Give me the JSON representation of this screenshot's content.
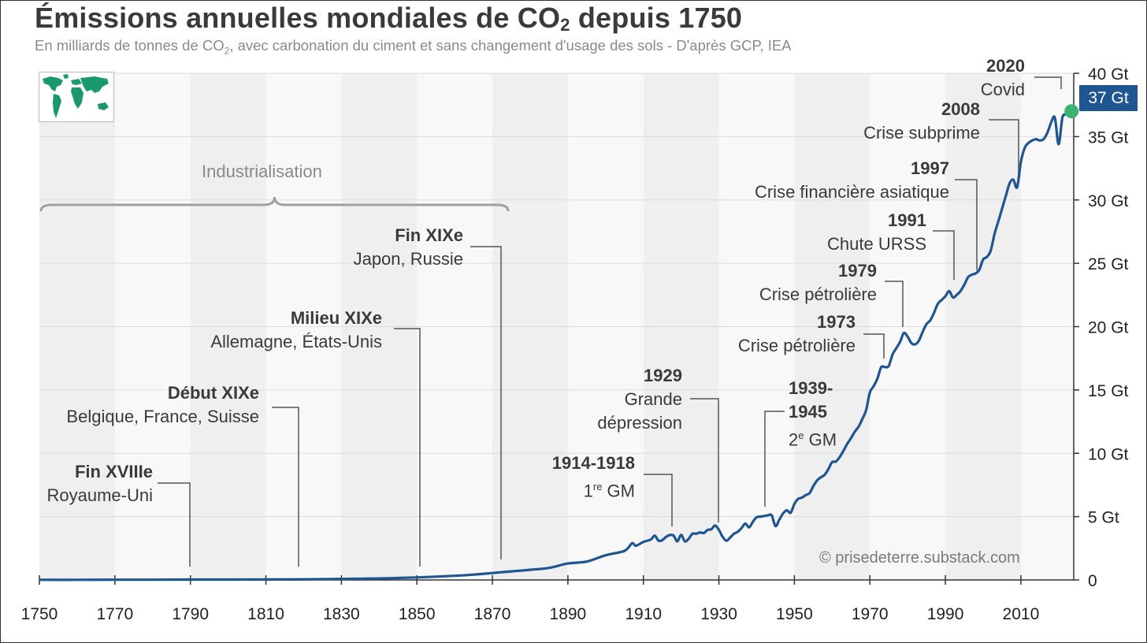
{
  "title_main": "Émissions annuelles mondiales de CO",
  "title_sub": "2",
  "title_tail": " depuis 1750",
  "subtitle_main": "En milliards de tonnes de CO",
  "subtitle_sub": "2",
  "subtitle_tail": ", avec carbonation du ciment et sans changement d'usage des sols - D'après GCP, IEA",
  "credit": "© prisedeterre.substack.com",
  "industrialisation_label": "Industrialisation",
  "current_badge": "37 Gt",
  "colors": {
    "line": "#1f5591",
    "endpoint": "#3cb371",
    "band_dark": "#efefef",
    "band_light": "#f8f8f8",
    "text": "#3a3a3a",
    "map": "#1a9a6c"
  },
  "annotations": {
    "a1790": {
      "title": "Fin XVIIIe",
      "text": "Royaume-Uni"
    },
    "a1810": {
      "title": "Début XIXe",
      "text": "Belgique, France, Suisse"
    },
    "a1850": {
      "title": "Milieu XIXe",
      "text": "Allemagne, États-Unis"
    },
    "a1870": {
      "title": "Fin XIXe",
      "text": "Japon, Russie"
    },
    "a1914": {
      "title": "1914-1918",
      "text_pre": "1",
      "text_sup": "re",
      "text_post": " GM"
    },
    "a1929": {
      "title": "1929",
      "line1": "Grande",
      "line2": "dépression"
    },
    "a1939": {
      "title_l1": "1939-",
      "title_l2": "1945",
      "text_pre": "2",
      "text_sup": "e",
      "text_post": " GM"
    },
    "a1973": {
      "title": "1973",
      "text": "Crise pétrolière"
    },
    "a1979": {
      "title": "1979",
      "text": "Crise pétrolière"
    },
    "a1991": {
      "title": "1991",
      "text": "Chute URSS"
    },
    "a1997": {
      "title": "1997",
      "text": "Crise financière asiatique"
    },
    "a2008": {
      "title": "2008",
      "text": "Crise subprime"
    },
    "a2020": {
      "title": "2020",
      "text": "Covid"
    }
  },
  "chart_data": {
    "type": "line",
    "title": "Émissions annuelles mondiales de CO2 depuis 1750",
    "xlabel": "",
    "ylabel": "Gt CO2",
    "xlim": [
      1750,
      2024
    ],
    "ylim": [
      0,
      40
    ],
    "x_ticks": [
      1750,
      1770,
      1790,
      1810,
      1830,
      1850,
      1870,
      1890,
      1910,
      1930,
      1950,
      1970,
      1990,
      2010
    ],
    "y_ticks": [
      0,
      5,
      10,
      15,
      20,
      25,
      30,
      35,
      40
    ],
    "y_tick_labels": [
      "0",
      "5 Gt",
      "10 Gt",
      "15 Gt",
      "20 Gt",
      "25 Gt",
      "30 Gt",
      "35 Gt",
      "40 Gt"
    ],
    "series": [
      {
        "name": "Émissions annuelles mondiales de CO2",
        "points": [
          [
            1750,
            0.01
          ],
          [
            1760,
            0.01
          ],
          [
            1770,
            0.02
          ],
          [
            1780,
            0.02
          ],
          [
            1790,
            0.03
          ],
          [
            1800,
            0.03
          ],
          [
            1810,
            0.04
          ],
          [
            1820,
            0.05
          ],
          [
            1830,
            0.08
          ],
          [
            1840,
            0.12
          ],
          [
            1850,
            0.2
          ],
          [
            1855,
            0.26
          ],
          [
            1860,
            0.33
          ],
          [
            1865,
            0.42
          ],
          [
            1870,
            0.55
          ],
          [
            1875,
            0.68
          ],
          [
            1880,
            0.8
          ],
          [
            1885,
            0.95
          ],
          [
            1890,
            1.3
          ],
          [
            1895,
            1.45
          ],
          [
            1900,
            1.95
          ],
          [
            1905,
            2.3
          ],
          [
            1907,
            2.9
          ],
          [
            1908,
            2.7
          ],
          [
            1910,
            3.0
          ],
          [
            1912,
            3.2
          ],
          [
            1913,
            3.5
          ],
          [
            1914,
            3.1
          ],
          [
            1915,
            3.15
          ],
          [
            1916,
            3.4
          ],
          [
            1917,
            3.55
          ],
          [
            1918,
            3.5
          ],
          [
            1919,
            3.05
          ],
          [
            1920,
            3.55
          ],
          [
            1921,
            3.05
          ],
          [
            1922,
            3.25
          ],
          [
            1923,
            3.65
          ],
          [
            1924,
            3.65
          ],
          [
            1925,
            3.75
          ],
          [
            1926,
            3.7
          ],
          [
            1927,
            3.95
          ],
          [
            1928,
            4.0
          ],
          [
            1929,
            4.3
          ],
          [
            1930,
            3.95
          ],
          [
            1931,
            3.4
          ],
          [
            1932,
            3.1
          ],
          [
            1933,
            3.35
          ],
          [
            1934,
            3.65
          ],
          [
            1935,
            3.8
          ],
          [
            1936,
            4.1
          ],
          [
            1937,
            4.45
          ],
          [
            1938,
            4.15
          ],
          [
            1939,
            4.6
          ],
          [
            1940,
            4.95
          ],
          [
            1941,
            5.0
          ],
          [
            1942,
            5.05
          ],
          [
            1943,
            5.1
          ],
          [
            1944,
            5.1
          ],
          [
            1945,
            4.25
          ],
          [
            1946,
            4.75
          ],
          [
            1947,
            5.25
          ],
          [
            1948,
            5.5
          ],
          [
            1949,
            5.3
          ],
          [
            1950,
            6.0
          ],
          [
            1951,
            6.4
          ],
          [
            1952,
            6.5
          ],
          [
            1953,
            6.7
          ],
          [
            1954,
            6.85
          ],
          [
            1955,
            7.4
          ],
          [
            1956,
            7.85
          ],
          [
            1957,
            8.1
          ],
          [
            1958,
            8.3
          ],
          [
            1959,
            8.75
          ],
          [
            1960,
            9.3
          ],
          [
            1961,
            9.35
          ],
          [
            1962,
            9.7
          ],
          [
            1963,
            10.2
          ],
          [
            1964,
            10.75
          ],
          [
            1965,
            11.2
          ],
          [
            1966,
            11.7
          ],
          [
            1967,
            12.1
          ],
          [
            1968,
            12.7
          ],
          [
            1969,
            13.4
          ],
          [
            1970,
            14.8
          ],
          [
            1971,
            15.3
          ],
          [
            1972,
            15.9
          ],
          [
            1973,
            16.8
          ],
          [
            1974,
            16.8
          ],
          [
            1975,
            16.9
          ],
          [
            1976,
            17.8
          ],
          [
            1977,
            18.3
          ],
          [
            1978,
            18.8
          ],
          [
            1979,
            19.5
          ],
          [
            1980,
            19.2
          ],
          [
            1981,
            18.7
          ],
          [
            1982,
            18.6
          ],
          [
            1983,
            18.9
          ],
          [
            1984,
            19.6
          ],
          [
            1985,
            20.2
          ],
          [
            1986,
            20.5
          ],
          [
            1987,
            21.1
          ],
          [
            1988,
            21.8
          ],
          [
            1989,
            22.1
          ],
          [
            1990,
            22.4
          ],
          [
            1991,
            22.8
          ],
          [
            1992,
            22.3
          ],
          [
            1993,
            22.5
          ],
          [
            1994,
            22.8
          ],
          [
            1995,
            23.3
          ],
          [
            1996,
            23.9
          ],
          [
            1997,
            24.1
          ],
          [
            1998,
            24.2
          ],
          [
            1999,
            24.5
          ],
          [
            2000,
            25.3
          ],
          [
            2001,
            25.5
          ],
          [
            2002,
            26.0
          ],
          [
            2003,
            27.3
          ],
          [
            2004,
            28.3
          ],
          [
            2005,
            29.3
          ],
          [
            2006,
            30.3
          ],
          [
            2007,
            31.3
          ],
          [
            2008,
            31.6
          ],
          [
            2009,
            31.0
          ],
          [
            2010,
            33.0
          ],
          [
            2011,
            34.1
          ],
          [
            2012,
            34.5
          ],
          [
            2013,
            34.7
          ],
          [
            2014,
            34.8
          ],
          [
            2015,
            34.7
          ],
          [
            2016,
            34.8
          ],
          [
            2017,
            35.3
          ],
          [
            2018,
            36.1
          ],
          [
            2019,
            36.5
          ],
          [
            2020,
            34.4
          ],
          [
            2021,
            36.5
          ],
          [
            2022,
            36.8
          ],
          [
            2023,
            37.3
          ]
        ]
      }
    ],
    "annotations": [
      {
        "year": 1790,
        "label": "Fin XVIIIe — Royaume-Uni"
      },
      {
        "year": 1819,
        "label": "Début XIXe — Belgique, France, Suisse"
      },
      {
        "year": 1851,
        "label": "Milieu XIXe — Allemagne, États-Unis"
      },
      {
        "year": 1872,
        "label": "Fin XIXe — Japon, Russie"
      },
      {
        "year": 1917,
        "label": "1914-1918 — 1re GM"
      },
      {
        "year": 1929,
        "label": "1929 — Grande dépression"
      },
      {
        "year": 1942,
        "label": "1939-1945 — 2e GM"
      },
      {
        "year": 1973,
        "label": "1973 — Crise pétrolière"
      },
      {
        "year": 1979,
        "label": "1979 — Crise pétrolière"
      },
      {
        "year": 1991,
        "label": "1991 — Chute URSS"
      },
      {
        "year": 1997,
        "label": "1997 — Crise financière asiatique"
      },
      {
        "year": 2008,
        "label": "2008 — Crise subprime"
      },
      {
        "year": 2020,
        "label": "2020 — Covid"
      }
    ],
    "endpoint": {
      "year": 2023,
      "value": 37,
      "label": "37 Gt"
    },
    "bracket": {
      "from": 1750,
      "to": 1875,
      "label": "Industrialisation"
    },
    "grid": true,
    "legend": "none"
  }
}
